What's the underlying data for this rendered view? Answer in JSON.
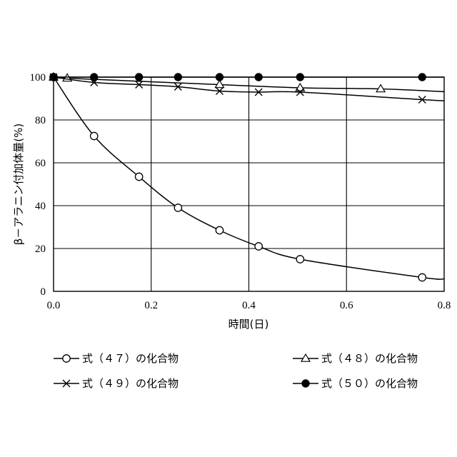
{
  "chart_data": {
    "type": "line",
    "title": "",
    "xlabel": "時間(日)",
    "ylabel": "β－アラニン付加体量(%)",
    "xlim": [
      0,
      0.8
    ],
    "ylim": [
      0,
      100
    ],
    "x_ticks": [
      "0.0",
      "0.2",
      "0.4",
      "0.6",
      "0.8"
    ],
    "y_ticks": [
      "0",
      "20",
      "40",
      "60",
      "80",
      "100"
    ],
    "grid": true,
    "legend_position": "bottom",
    "series": [
      {
        "name": "式（４７）の化合物",
        "marker": "open-circle",
        "x": [
          0,
          0.083,
          0.175,
          0.255,
          0.34,
          0.42,
          0.505,
          0.755
        ],
        "y": [
          100,
          72.5,
          53.5,
          39,
          28.5,
          21,
          15,
          6.5
        ]
      },
      {
        "name": "式（４８）の化合物",
        "marker": "open-triangle",
        "x": [
          0,
          0.028,
          0.34,
          0.505,
          0.67
        ],
        "y": [
          100,
          99.5,
          96.5,
          95,
          94.5
        ]
      },
      {
        "name": "式（４９）の化合物",
        "marker": "cross",
        "x": [
          0,
          0.083,
          0.175,
          0.255,
          0.34,
          0.42,
          0.505,
          0.755
        ],
        "y": [
          100,
          97.5,
          96.5,
          95.5,
          93.5,
          93,
          93,
          89.5
        ]
      },
      {
        "name": "式（５０）の化合物",
        "marker": "filled-circle",
        "x": [
          0,
          0.083,
          0.175,
          0.255,
          0.34,
          0.42,
          0.505,
          0.755
        ],
        "y": [
          100,
          100,
          100,
          100,
          100,
          100,
          100,
          100
        ]
      }
    ]
  }
}
